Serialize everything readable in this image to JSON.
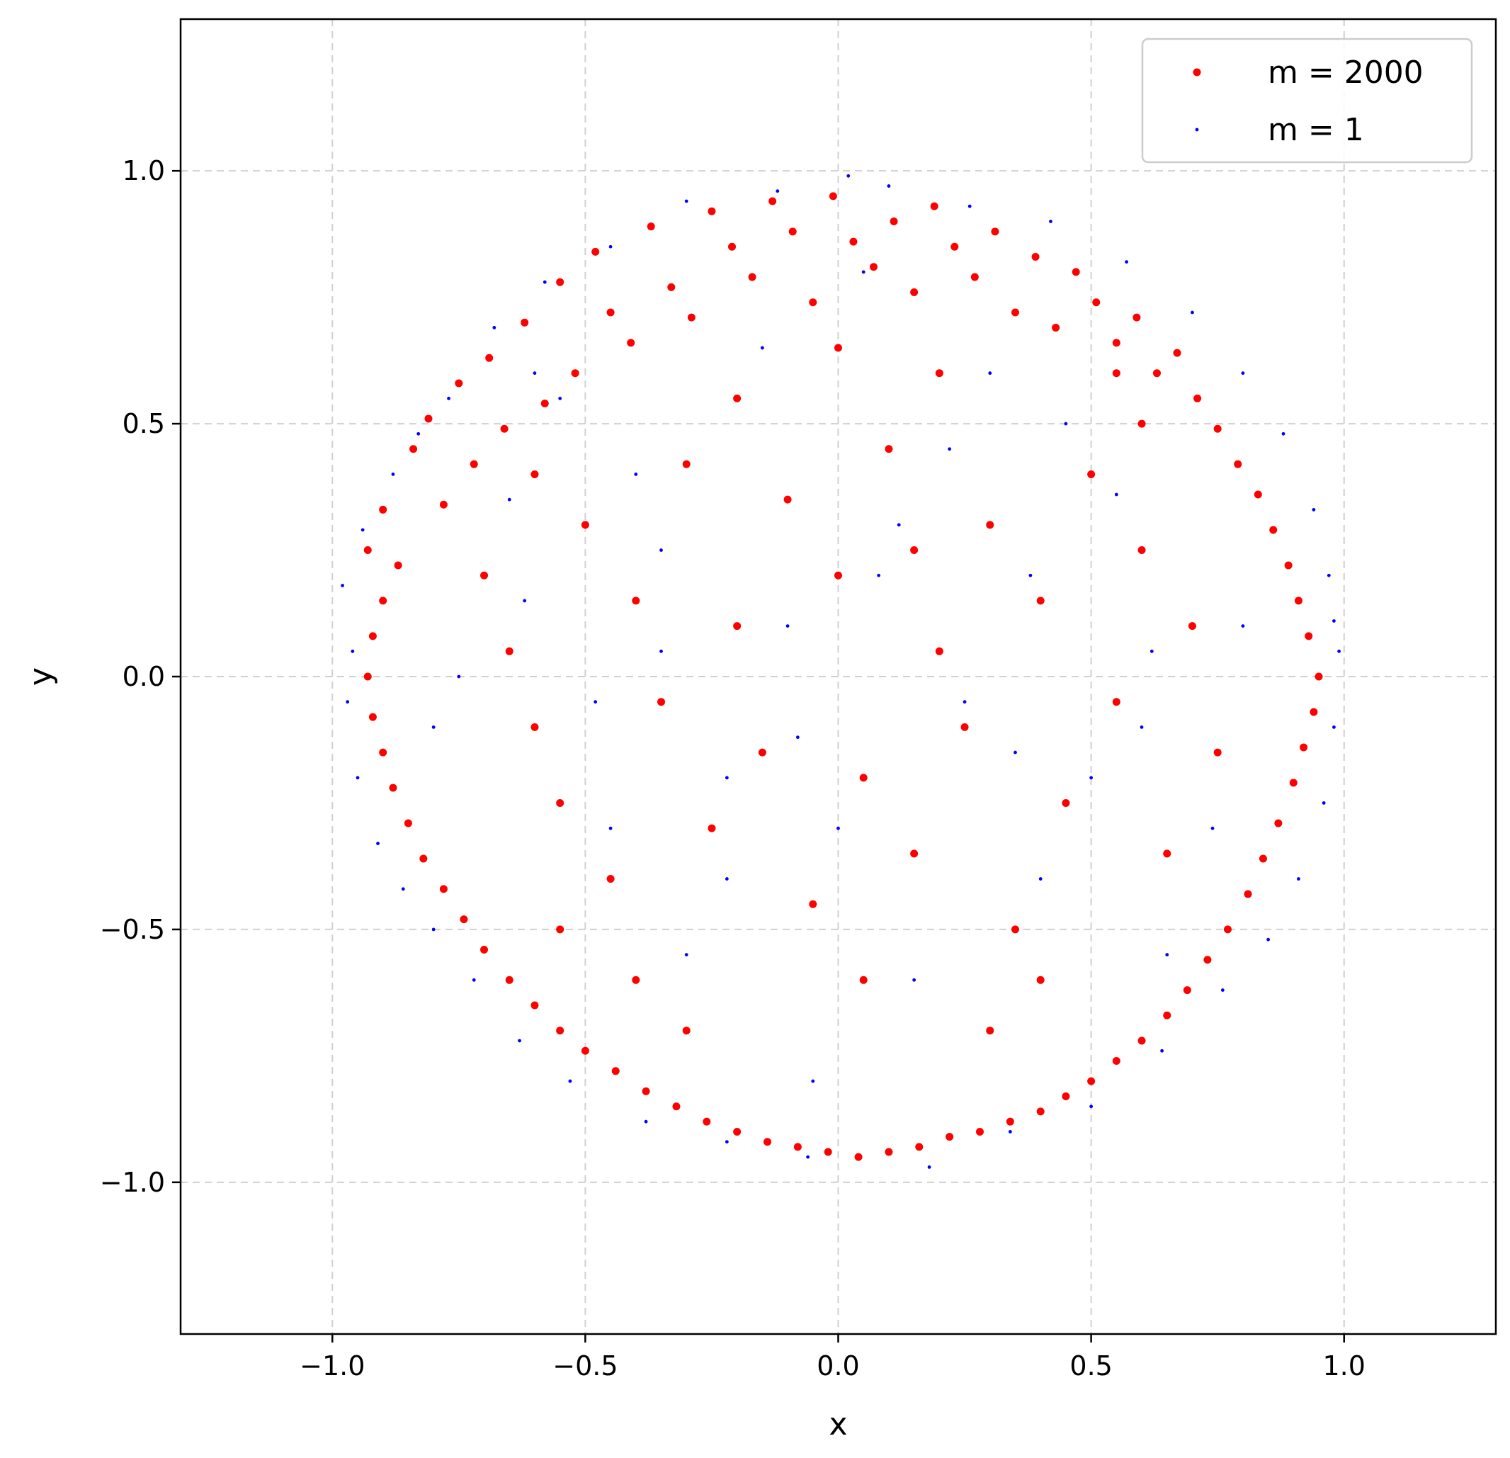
{
  "chart_data": {
    "type": "scatter",
    "xlabel": "x",
    "ylabel": "y",
    "xlim": [
      -1.3,
      1.3
    ],
    "ylim": [
      -1.3,
      1.3
    ],
    "x_ticks": [
      -1.0,
      -0.5,
      0.0,
      0.5,
      1.0
    ],
    "y_ticks": [
      -1.0,
      -0.5,
      0.0,
      0.5,
      1.0
    ],
    "x_tick_labels": [
      "−1.0",
      "−0.5",
      "0.0",
      "0.5",
      "1.0"
    ],
    "y_tick_labels": [
      "−1.0",
      "−0.5",
      "0.0",
      "0.5",
      "1.0"
    ],
    "grid": true,
    "legend_position": "top-right",
    "series": [
      {
        "name": "m = 2000",
        "color": "#ff0000",
        "marker": "dot-large",
        "points": [
          [
            -0.93,
            0.25
          ],
          [
            -0.9,
            0.33
          ],
          [
            -0.87,
            0.22
          ],
          [
            -0.84,
            0.45
          ],
          [
            -0.81,
            0.51
          ],
          [
            -0.78,
            0.34
          ],
          [
            -0.75,
            0.58
          ],
          [
            -0.72,
            0.42
          ],
          [
            -0.69,
            0.63
          ],
          [
            -0.66,
            0.49
          ],
          [
            -0.62,
            0.7
          ],
          [
            -0.58,
            0.54
          ],
          [
            -0.55,
            0.78
          ],
          [
            -0.52,
            0.6
          ],
          [
            -0.48,
            0.84
          ],
          [
            -0.45,
            0.72
          ],
          [
            -0.41,
            0.66
          ],
          [
            -0.37,
            0.89
          ],
          [
            -0.33,
            0.77
          ],
          [
            -0.29,
            0.71
          ],
          [
            -0.25,
            0.92
          ],
          [
            -0.21,
            0.85
          ],
          [
            -0.17,
            0.79
          ],
          [
            -0.13,
            0.94
          ],
          [
            -0.09,
            0.88
          ],
          [
            -0.05,
            0.74
          ],
          [
            -0.01,
            0.95
          ],
          [
            0.03,
            0.86
          ],
          [
            0.07,
            0.81
          ],
          [
            0.11,
            0.9
          ],
          [
            0.15,
            0.76
          ],
          [
            0.19,
            0.93
          ],
          [
            0.23,
            0.85
          ],
          [
            0.27,
            0.79
          ],
          [
            0.31,
            0.88
          ],
          [
            0.35,
            0.72
          ],
          [
            0.39,
            0.83
          ],
          [
            0.43,
            0.69
          ],
          [
            0.47,
            0.8
          ],
          [
            0.51,
            0.74
          ],
          [
            0.55,
            0.66
          ],
          [
            0.59,
            0.71
          ],
          [
            0.63,
            0.6
          ],
          [
            0.67,
            0.64
          ],
          [
            0.71,
            0.55
          ],
          [
            0.75,
            0.49
          ],
          [
            0.79,
            0.42
          ],
          [
            0.83,
            0.36
          ],
          [
            0.86,
            0.29
          ],
          [
            0.89,
            0.22
          ],
          [
            0.91,
            0.15
          ],
          [
            0.93,
            0.08
          ],
          [
            0.95,
            0.0
          ],
          [
            0.94,
            -0.07
          ],
          [
            0.92,
            -0.14
          ],
          [
            0.9,
            -0.21
          ],
          [
            0.87,
            -0.29
          ],
          [
            0.84,
            -0.36
          ],
          [
            0.81,
            -0.43
          ],
          [
            0.77,
            -0.5
          ],
          [
            0.73,
            -0.56
          ],
          [
            0.69,
            -0.62
          ],
          [
            0.65,
            -0.67
          ],
          [
            0.6,
            -0.72
          ],
          [
            0.55,
            -0.76
          ],
          [
            0.5,
            -0.8
          ],
          [
            0.45,
            -0.83
          ],
          [
            0.4,
            -0.86
          ],
          [
            0.34,
            -0.88
          ],
          [
            0.28,
            -0.9
          ],
          [
            0.22,
            -0.91
          ],
          [
            0.16,
            -0.93
          ],
          [
            0.1,
            -0.94
          ],
          [
            0.04,
            -0.95
          ],
          [
            -0.02,
            -0.94
          ],
          [
            -0.08,
            -0.93
          ],
          [
            -0.14,
            -0.92
          ],
          [
            -0.2,
            -0.9
          ],
          [
            -0.26,
            -0.88
          ],
          [
            -0.32,
            -0.85
          ],
          [
            -0.38,
            -0.82
          ],
          [
            -0.44,
            -0.78
          ],
          [
            -0.5,
            -0.74
          ],
          [
            -0.55,
            -0.7
          ],
          [
            -0.6,
            -0.65
          ],
          [
            -0.65,
            -0.6
          ],
          [
            -0.7,
            -0.54
          ],
          [
            -0.74,
            -0.48
          ],
          [
            -0.78,
            -0.42
          ],
          [
            -0.82,
            -0.36
          ],
          [
            -0.85,
            -0.29
          ],
          [
            -0.88,
            -0.22
          ],
          [
            -0.9,
            -0.15
          ],
          [
            -0.92,
            -0.08
          ],
          [
            -0.93,
            0.0
          ],
          [
            -0.92,
            0.08
          ],
          [
            -0.9,
            0.15
          ],
          [
            -0.7,
            0.2
          ],
          [
            -0.65,
            0.05
          ],
          [
            -0.6,
            -0.1
          ],
          [
            -0.55,
            -0.25
          ],
          [
            -0.5,
            0.3
          ],
          [
            -0.45,
            -0.4
          ],
          [
            -0.4,
            0.15
          ],
          [
            -0.35,
            -0.05
          ],
          [
            -0.3,
            0.42
          ],
          [
            -0.25,
            -0.3
          ],
          [
            -0.2,
            0.1
          ],
          [
            -0.15,
            -0.15
          ],
          [
            -0.1,
            0.35
          ],
          [
            -0.05,
            -0.45
          ],
          [
            0.0,
            0.2
          ],
          [
            0.05,
            -0.2
          ],
          [
            0.1,
            0.45
          ],
          [
            0.15,
            -0.35
          ],
          [
            0.2,
            0.05
          ],
          [
            0.25,
            -0.1
          ],
          [
            0.3,
            0.3
          ],
          [
            0.35,
            -0.5
          ],
          [
            0.4,
            0.15
          ],
          [
            0.45,
            -0.25
          ],
          [
            0.5,
            0.4
          ],
          [
            0.55,
            -0.05
          ],
          [
            0.6,
            0.25
          ],
          [
            0.65,
            -0.35
          ],
          [
            0.7,
            0.1
          ],
          [
            0.75,
            -0.15
          ],
          [
            0.2,
            0.6
          ],
          [
            -0.2,
            0.55
          ],
          [
            0.05,
            -0.6
          ],
          [
            -0.4,
            -0.6
          ],
          [
            0.4,
            -0.6
          ],
          [
            0.6,
            0.5
          ],
          [
            -0.6,
            0.4
          ],
          [
            0.0,
            0.65
          ],
          [
            0.3,
            -0.7
          ],
          [
            -0.3,
            -0.7
          ],
          [
            0.55,
            0.6
          ],
          [
            -0.55,
            -0.5
          ],
          [
            0.15,
            0.25
          ]
        ]
      },
      {
        "name": "m = 1",
        "color": "#0000ff",
        "marker": "dot-small",
        "points": [
          [
            -0.98,
            0.18
          ],
          [
            -0.97,
            -0.05
          ],
          [
            -0.96,
            0.05
          ],
          [
            -0.95,
            -0.2
          ],
          [
            -0.94,
            0.29
          ],
          [
            -0.91,
            -0.33
          ],
          [
            -0.88,
            0.4
          ],
          [
            -0.86,
            -0.42
          ],
          [
            -0.83,
            0.48
          ],
          [
            -0.8,
            -0.5
          ],
          [
            -0.77,
            0.55
          ],
          [
            -0.72,
            -0.6
          ],
          [
            -0.68,
            0.69
          ],
          [
            -0.63,
            -0.72
          ],
          [
            -0.58,
            0.78
          ],
          [
            -0.53,
            -0.8
          ],
          [
            -0.45,
            0.85
          ],
          [
            -0.38,
            -0.88
          ],
          [
            -0.3,
            0.94
          ],
          [
            -0.22,
            -0.92
          ],
          [
            -0.12,
            0.96
          ],
          [
            -0.06,
            -0.95
          ],
          [
            0.02,
            0.99
          ],
          [
            0.1,
            0.97
          ],
          [
            0.18,
            -0.97
          ],
          [
            0.26,
            0.93
          ],
          [
            0.34,
            -0.9
          ],
          [
            0.42,
            0.9
          ],
          [
            0.5,
            -0.85
          ],
          [
            0.57,
            0.82
          ],
          [
            0.64,
            -0.74
          ],
          [
            0.7,
            0.72
          ],
          [
            0.76,
            -0.62
          ],
          [
            0.8,
            0.6
          ],
          [
            0.85,
            -0.52
          ],
          [
            0.88,
            0.48
          ],
          [
            0.91,
            -0.4
          ],
          [
            0.94,
            0.33
          ],
          [
            0.96,
            -0.25
          ],
          [
            0.97,
            0.2
          ],
          [
            0.98,
            -0.1
          ],
          [
            0.99,
            0.05
          ],
          [
            0.98,
            0.11
          ],
          [
            -0.75,
            0.0
          ],
          [
            -0.62,
            0.15
          ],
          [
            -0.48,
            -0.05
          ],
          [
            -0.35,
            0.25
          ],
          [
            -0.22,
            -0.2
          ],
          [
            -0.1,
            0.1
          ],
          [
            0.0,
            -0.3
          ],
          [
            0.12,
            0.3
          ],
          [
            0.25,
            -0.05
          ],
          [
            0.38,
            0.2
          ],
          [
            0.5,
            -0.2
          ],
          [
            0.62,
            0.05
          ],
          [
            0.74,
            -0.3
          ],
          [
            -0.55,
            0.55
          ],
          [
            0.55,
            0.36
          ],
          [
            -0.3,
            -0.55
          ],
          [
            0.3,
            0.6
          ],
          [
            -0.15,
            0.65
          ],
          [
            0.15,
            -0.6
          ],
          [
            0.4,
            -0.4
          ],
          [
            -0.4,
            0.4
          ],
          [
            0.08,
            0.2
          ],
          [
            -0.08,
            -0.12
          ],
          [
            0.22,
            0.45
          ],
          [
            -0.22,
            -0.4
          ],
          [
            0.65,
            -0.55
          ],
          [
            -0.65,
            0.35
          ],
          [
            0.45,
            0.5
          ],
          [
            -0.45,
            -0.3
          ],
          [
            0.35,
            -0.15
          ],
          [
            -0.35,
            0.05
          ],
          [
            0.8,
            0.1
          ],
          [
            -0.8,
            -0.1
          ],
          [
            0.05,
            0.8
          ],
          [
            -0.05,
            -0.8
          ],
          [
            0.6,
            -0.1
          ],
          [
            -0.6,
            0.6
          ]
        ]
      }
    ]
  }
}
